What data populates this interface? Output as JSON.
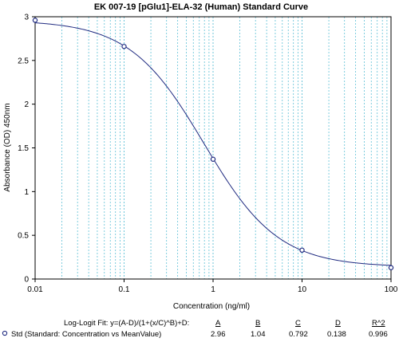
{
  "chart_data": {
    "type": "scatter",
    "title": "EK 007-19 [pGlu1]-ELA-32 (Human)  Standard Curve",
    "xlabel": "Concentration (ng/ml)",
    "ylabel": "Absorbance (OD) 450nm",
    "x_scale": "log",
    "xlim": [
      0.01,
      100
    ],
    "ylim": [
      0,
      3
    ],
    "x_ticks": [
      0.01,
      0.1,
      1,
      10,
      100
    ],
    "x_tick_labels": [
      "0.01",
      "0.1",
      "1",
      "10",
      "100"
    ],
    "y_ticks": [
      0,
      0.5,
      1,
      1.5,
      2,
      2.5,
      3
    ],
    "y_tick_labels": [
      "0",
      "0.5",
      "1",
      "1.5",
      "2",
      "2.5",
      "3"
    ],
    "grid": true,
    "series": [
      {
        "name": "Std (Standard: Concentration vs MeanValue)",
        "x": [
          0.01,
          0.1,
          1,
          10,
          100
        ],
        "y": [
          2.96,
          2.66,
          1.37,
          0.33,
          0.13
        ]
      }
    ],
    "fit": {
      "A": 2.96,
      "B": 1.04,
      "C": 0.792,
      "D": 0.138
    },
    "colors": {
      "grid": "#5fc0d6",
      "curve": "#1f2a80",
      "points": "#1f2a80"
    }
  },
  "footer": {
    "fit_label": "Log-Logit Fit: y=(A-D)/(1+(x/C)^B)+D:",
    "params": [
      {
        "header": "A",
        "value": "2.96"
      },
      {
        "header": "B",
        "value": "1.04"
      },
      {
        "header": "C",
        "value": "0.792"
      },
      {
        "header": "D",
        "value": "0.138"
      },
      {
        "header": "R^2",
        "value": "0.996"
      }
    ],
    "legend_label": "Std (Standard: Concentration vs MeanValue)"
  }
}
